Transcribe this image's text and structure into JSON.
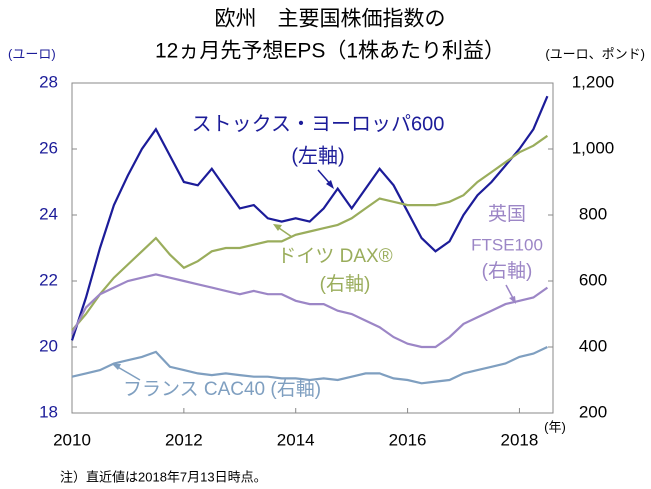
{
  "chart_data": {
    "type": "line",
    "title": [
      "欧州　主要国株価指数の",
      "12ヵ月先予想EPS（1株あたり利益）"
    ],
    "y_unit": "(ユーロ)",
    "y2_unit": "(ユーロ、ポンド)",
    "x_unit": "(年)",
    "note": "注）直近値は2018年7月13日時点。",
    "x": [
      2010,
      2010.25,
      2010.5,
      2010.75,
      2011,
      2011.25,
      2011.5,
      2011.75,
      2012,
      2012.25,
      2012.5,
      2012.75,
      2013,
      2013.25,
      2013.5,
      2013.75,
      2014,
      2014.25,
      2014.5,
      2014.75,
      2015,
      2015.25,
      2015.5,
      2015.75,
      2016,
      2016.25,
      2016.5,
      2016.75,
      2017,
      2017.25,
      2017.5,
      2017.75,
      2018,
      2018.25,
      2018.5
    ],
    "xlim": [
      2010,
      2018.6
    ],
    "xticks": [
      2010,
      2012,
      2014,
      2016,
      2018
    ],
    "ylim": [
      18,
      28
    ],
    "yticks": [
      18,
      20,
      22,
      24,
      26,
      28
    ],
    "y2lim": [
      200,
      1200
    ],
    "y2ticks": [
      200,
      400,
      600,
      800,
      {
        "value": 1000,
        "label": "1,000"
      },
      {
        "value": 1200,
        "label": "1,200"
      }
    ],
    "series": [
      {
        "name": "ストックス・ヨーロッパ600",
        "note": "(左軸)",
        "color": "#1c1c99",
        "axis": "y",
        "values": [
          20.2,
          21.5,
          23.0,
          24.3,
          25.2,
          26.0,
          26.6,
          25.8,
          25.0,
          24.9,
          25.4,
          24.8,
          24.2,
          24.3,
          23.9,
          23.8,
          23.9,
          23.8,
          24.2,
          24.8,
          24.2,
          24.8,
          25.4,
          24.9,
          24.1,
          23.3,
          22.9,
          23.2,
          24.0,
          24.6,
          25.0,
          25.5,
          26.0,
          26.6,
          27.6
        ]
      },
      {
        "name": "ドイツ DAX®",
        "note": "(右軸)",
        "color": "#9aad5c",
        "axis": "y2",
        "values": [
          450,
          500,
          560,
          610,
          650,
          690,
          730,
          680,
          640,
          660,
          690,
          700,
          700,
          710,
          720,
          720,
          740,
          750,
          760,
          770,
          790,
          820,
          850,
          840,
          830,
          830,
          830,
          840,
          860,
          900,
          930,
          960,
          990,
          1010,
          1040
        ]
      },
      {
        "name": "英国",
        "subname": "FTSE100",
        "note": "(右軸)",
        "color": "#9c86c6",
        "axis": "y2",
        "values": [
          440,
          520,
          560,
          580,
          600,
          610,
          620,
          610,
          600,
          590,
          580,
          570,
          560,
          570,
          560,
          560,
          540,
          530,
          530,
          510,
          500,
          480,
          460,
          430,
          410,
          400,
          400,
          430,
          470,
          490,
          510,
          530,
          540,
          550,
          580
        ]
      },
      {
        "name": "フランス CAC40 (右軸)",
        "color": "#7f9fc0",
        "axis": "y2",
        "values": [
          310,
          320,
          330,
          350,
          360,
          370,
          385,
          340,
          330,
          320,
          315,
          320,
          315,
          310,
          310,
          305,
          305,
          300,
          305,
          300,
          310,
          320,
          320,
          305,
          300,
          290,
          295,
          300,
          320,
          330,
          340,
          350,
          370,
          380,
          400
        ]
      }
    ]
  }
}
